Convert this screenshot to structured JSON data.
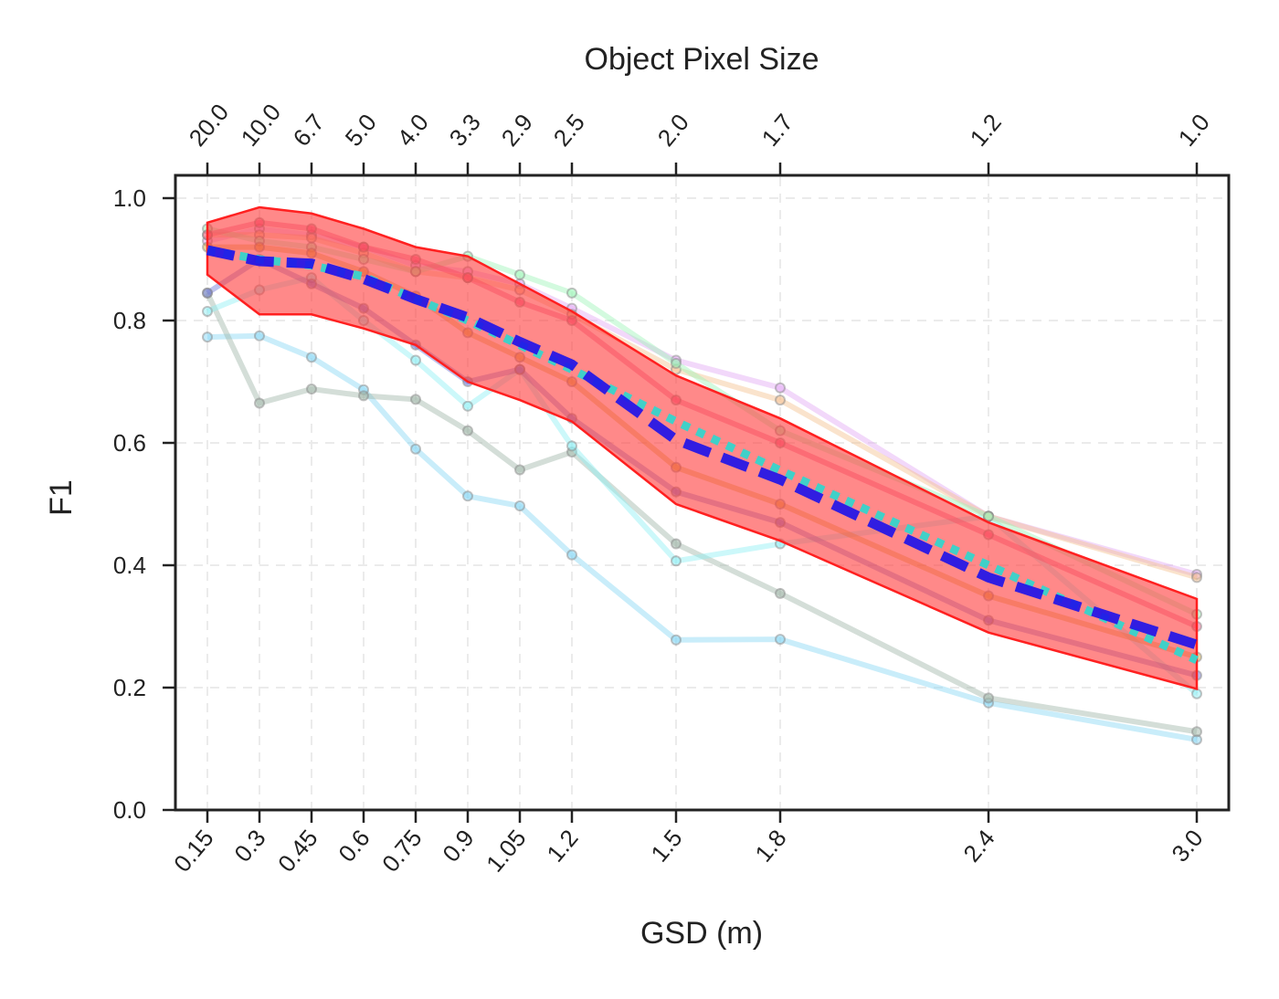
{
  "chart_data": {
    "type": "line",
    "xlabel": "GSD (m)",
    "ylabel": "F1",
    "top_xlabel": "Object Pixel Size",
    "x": [
      0.15,
      0.3,
      0.45,
      0.6,
      0.75,
      0.9,
      1.05,
      1.2,
      1.5,
      1.8,
      2.4,
      3.0
    ],
    "x_tick_labels": [
      "0.15",
      "0.3",
      "0.45",
      "0.6",
      "0.75",
      "0.9",
      "1.05",
      "1.2",
      "1.5",
      "1.8",
      "2.4",
      "3.0"
    ],
    "top_tick_labels": [
      "20.0",
      "10.0",
      "6.7",
      "5.0",
      "4.0",
      "3.3",
      "2.9",
      "2.5",
      "2.0",
      "1.7",
      "1.2",
      "1.0"
    ],
    "y_ticks": [
      0.0,
      0.2,
      0.4,
      0.6,
      0.8,
      1.0
    ],
    "y_tick_labels": [
      "0.0",
      "0.2",
      "0.4",
      "0.6",
      "0.8",
      "1.0"
    ],
    "xlim": [
      0.07,
      3.07
    ],
    "ylim": [
      0.0,
      1.04
    ],
    "grid": true,
    "band": {
      "color": "#ff3b3b",
      "upper": [
        0.96,
        0.985,
        0.975,
        0.95,
        0.92,
        0.905,
        0.86,
        0.815,
        0.71,
        0.64,
        0.47,
        0.345
      ],
      "lower": [
        0.875,
        0.81,
        0.81,
        0.787,
        0.76,
        0.7,
        0.67,
        0.635,
        0.5,
        0.44,
        0.29,
        0.198
      ]
    },
    "individual_series": [
      {
        "color": "#87d8f5",
        "values": [
          0.773,
          0.775,
          0.74,
          0.687,
          0.59,
          0.513,
          0.497,
          0.417,
          0.278,
          0.279,
          0.175,
          0.115
        ]
      },
      {
        "color": "#9fb5a8",
        "values": [
          0.845,
          0.665,
          0.688,
          0.677,
          0.671,
          0.62,
          0.556,
          0.585,
          0.435,
          0.354,
          0.183,
          0.128
        ]
      },
      {
        "color": "#8ff0f5",
        "values": [
          0.815,
          0.85,
          0.87,
          0.8,
          0.735,
          0.66,
          0.72,
          0.595,
          0.407,
          0.435,
          0.48,
          0.19
        ]
      },
      {
        "color": "#e3a8f5",
        "values": [
          0.93,
          0.95,
          0.94,
          0.92,
          0.89,
          0.88,
          0.86,
          0.82,
          0.735,
          0.69,
          0.48,
          0.385
        ]
      },
      {
        "color": "#f5c08f",
        "values": [
          0.94,
          0.94,
          0.935,
          0.91,
          0.88,
          0.87,
          0.85,
          0.81,
          0.72,
          0.67,
          0.48,
          0.38
        ]
      },
      {
        "color": "#9df5b8",
        "values": [
          0.95,
          0.93,
          0.92,
          0.9,
          0.88,
          0.905,
          0.875,
          0.845,
          0.73,
          0.62,
          0.48,
          0.32
        ]
      },
      {
        "color": "#6f78d8",
        "values": [
          0.845,
          0.9,
          0.86,
          0.82,
          0.76,
          0.7,
          0.72,
          0.64,
          0.52,
          0.47,
          0.31,
          0.22
        ]
      },
      {
        "color": "#d8b040",
        "values": [
          0.92,
          0.92,
          0.91,
          0.88,
          0.84,
          0.78,
          0.74,
          0.7,
          0.56,
          0.5,
          0.35,
          0.25
        ]
      },
      {
        "color": "#f06090",
        "values": [
          0.94,
          0.96,
          0.95,
          0.92,
          0.9,
          0.87,
          0.83,
          0.8,
          0.67,
          0.6,
          0.45,
          0.3
        ]
      }
    ],
    "mean_dashed": {
      "color": "#2014e8",
      "values": [
        0.915,
        0.897,
        0.893,
        0.868,
        0.835,
        0.805,
        0.765,
        0.728,
        0.605,
        0.54,
        0.38,
        0.27
      ]
    },
    "mean_dotted": {
      "color": "#40d0c8",
      "values": [
        0.915,
        0.9,
        0.89,
        0.872,
        0.835,
        0.8,
        0.76,
        0.72,
        0.635,
        0.555,
        0.4,
        0.245
      ]
    }
  }
}
